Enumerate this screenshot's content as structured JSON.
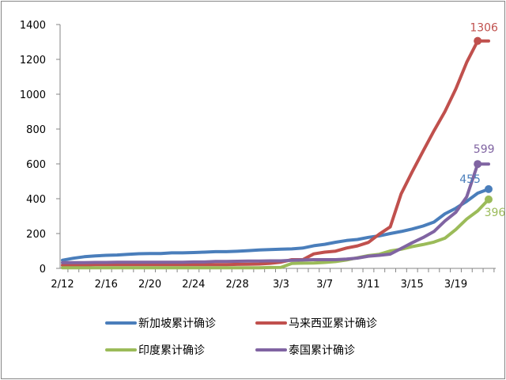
{
  "chart_data": {
    "type": "line",
    "title": "",
    "xlabel": "",
    "ylabel": "",
    "ylim": [
      0,
      1400
    ],
    "yticks": [
      0,
      200,
      400,
      600,
      800,
      1000,
      1200,
      1400
    ],
    "grid": false,
    "legend_placement": "bottom",
    "x": [
      "2/12",
      "2/13",
      "2/14",
      "2/15",
      "2/16",
      "2/17",
      "2/18",
      "2/19",
      "2/20",
      "2/21",
      "2/22",
      "2/23",
      "2/24",
      "2/25",
      "2/26",
      "2/27",
      "2/28",
      "2/29",
      "3/1",
      "3/2",
      "3/3",
      "3/4",
      "3/5",
      "3/6",
      "3/7",
      "3/8",
      "3/9",
      "3/10",
      "3/11",
      "3/12",
      "3/13",
      "3/14",
      "3/15",
      "3/16",
      "3/17",
      "3/18",
      "3/19",
      "3/20",
      "3/21",
      "3/22"
    ],
    "xtick_labels": [
      "2/12",
      "2/16",
      "2/20",
      "2/24",
      "2/28",
      "3/3",
      "3/7",
      "3/11",
      "3/15",
      "3/19"
    ],
    "series": [
      {
        "name": "新加坡累计确诊",
        "color": "#4a7ebb",
        "end_label": "455",
        "values": [
          47,
          58,
          67,
          72,
          75,
          77,
          81,
          84,
          85,
          85,
          89,
          89,
          91,
          93,
          96,
          96,
          98,
          102,
          106,
          108,
          110,
          112,
          117,
          130,
          138,
          150,
          160,
          166,
          178,
          187,
          200,
          212,
          226,
          243,
          266,
          313,
          345,
          385,
          432,
          455
        ]
      },
      {
        "name": "马来西亚累计确诊",
        "color": "#c0504d",
        "end_label": "1306",
        "values": [
          18,
          19,
          19,
          22,
          22,
          22,
          22,
          22,
          22,
          22,
          22,
          22,
          22,
          22,
          22,
          22,
          23,
          24,
          25,
          29,
          36,
          50,
          50,
          83,
          93,
          99,
          117,
          129,
          149,
          197,
          238,
          428,
          553,
          673,
          790,
          900,
          1030,
          1183,
          1306,
          1306
        ]
      },
      {
        "name": "印度累计确诊",
        "color": "#9bbb59",
        "end_label": "396",
        "values": [
          3,
          3,
          3,
          3,
          3,
          3,
          3,
          3,
          3,
          3,
          3,
          3,
          3,
          3,
          3,
          3,
          3,
          3,
          3,
          5,
          6,
          28,
          30,
          31,
          34,
          39,
          48,
          61,
          73,
          81,
          100,
          110,
          125,
          137,
          151,
          173,
          223,
          283,
          330,
          396
        ]
      },
      {
        "name": "泰国累计确诊",
        "color": "#8064a2",
        "end_label": "599",
        "values": [
          33,
          33,
          33,
          34,
          34,
          35,
          35,
          35,
          35,
          35,
          35,
          35,
          37,
          37,
          40,
          40,
          41,
          42,
          42,
          43,
          43,
          47,
          48,
          50,
          50,
          50,
          53,
          59,
          70,
          75,
          82,
          114,
          147,
          177,
          212,
          272,
          322,
          411,
          599,
          599
        ]
      }
    ]
  }
}
